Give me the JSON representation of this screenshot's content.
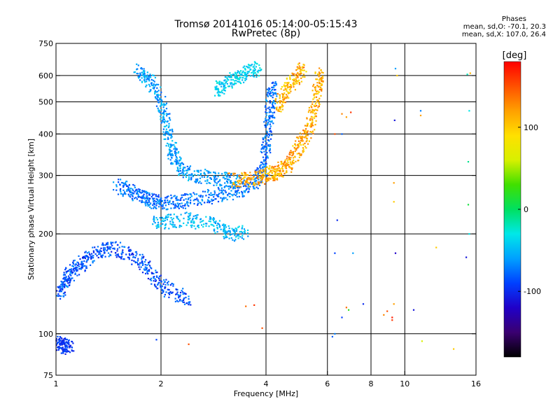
{
  "chart_data": {
    "type": "scatter",
    "title": "Tromsø 20141016 05:14:00-05:15:43",
    "subtitle": "RwPretec (8p)",
    "xlabel": "Frequency [MHz]",
    "ylabel": "Stationary phase Virtual Height [km]",
    "x_scale": "log",
    "y_scale": "log",
    "xlim": [
      1,
      16
    ],
    "ylim": [
      75,
      750
    ],
    "x_ticks": [
      1,
      2,
      4,
      6,
      8,
      10,
      16
    ],
    "x_tick_labels": [
      "1",
      "2",
      "4",
      "6",
      "8",
      "10",
      "16"
    ],
    "y_ticks": [
      75,
      100,
      200,
      300,
      400,
      500,
      600,
      750
    ],
    "y_tick_labels": [
      "75",
      "100",
      "200",
      "300",
      "400",
      "500",
      "600",
      "750"
    ],
    "grid": true,
    "legend": {
      "heading": "Phases",
      "line_o": "mean, sd,O: -70.1, 20.3",
      "line_x": "mean, sd,X: 107.0, 26.4"
    },
    "colorbar": {
      "label": "[deg]",
      "range": [
        -180,
        180
      ],
      "ticks": [
        100,
        0,
        -100
      ],
      "tick_labels": [
        "100",
        "0",
        "-100"
      ],
      "colormap": [
        "#000000",
        "#3a0070",
        "#2000c8",
        "#0040ff",
        "#00a0ff",
        "#00e8e8",
        "#00e060",
        "#40e000",
        "#d8f000",
        "#ffe000",
        "#ffa000",
        "#ff5000",
        "#ff0000"
      ]
    },
    "traces": [
      {
        "name": "",
        "mean_phase": -85,
        "spread": 22,
        "points": [
          [
            1.02,
            130
          ],
          [
            1.05,
            140
          ],
          [
            1.08,
            148
          ],
          [
            1.12,
            155
          ],
          [
            1.18,
            162
          ],
          [
            1.25,
            170
          ],
          [
            1.35,
            178
          ],
          [
            1.45,
            182
          ],
          [
            1.6,
            175
          ],
          [
            1.75,
            165
          ],
          [
            1.9,
            150
          ],
          [
            2.0,
            140
          ],
          [
            2.2,
            132
          ],
          [
            2.4,
            128
          ]
        ]
      },
      {
        "name": "",
        "mean_phase": -75,
        "spread": 20,
        "points": [
          [
            1.5,
            280
          ],
          [
            1.6,
            272
          ],
          [
            1.7,
            262
          ],
          [
            1.8,
            255
          ],
          [
            1.9,
            250
          ],
          [
            2.0,
            248
          ],
          [
            2.2,
            250
          ],
          [
            2.4,
            253
          ],
          [
            2.7,
            258
          ],
          [
            3.0,
            263
          ],
          [
            3.3,
            270
          ],
          [
            3.6,
            280
          ],
          [
            3.8,
            292
          ],
          [
            3.95,
            320
          ],
          [
            4.0,
            360
          ],
          [
            4.05,
            410
          ],
          [
            4.1,
            460
          ],
          [
            4.15,
            520
          ],
          [
            4.2,
            560
          ]
        ]
      },
      {
        "name": "",
        "mean_phase": -60,
        "spread": 20,
        "points": [
          [
            1.7,
            620
          ],
          [
            1.8,
            600
          ],
          [
            1.9,
            560
          ],
          [
            2.0,
            500
          ],
          [
            2.05,
            450
          ],
          [
            2.1,
            400
          ],
          [
            2.15,
            360
          ],
          [
            2.2,
            330
          ],
          [
            2.3,
            310
          ],
          [
            2.5,
            300
          ],
          [
            2.8,
            295
          ],
          [
            3.1,
            292
          ],
          [
            3.4,
            290
          ]
        ]
      },
      {
        "name": "",
        "mean_phase": -40,
        "spread": 18,
        "points": [
          [
            2.9,
            540
          ],
          [
            3.0,
            560
          ],
          [
            3.2,
            580
          ],
          [
            3.4,
            600
          ],
          [
            3.6,
            620
          ],
          [
            3.8,
            640
          ]
        ]
      },
      {
        "name": "",
        "mean_phase": 115,
        "spread": 25,
        "points": [
          [
            3.2,
            290
          ],
          [
            3.5,
            292
          ],
          [
            3.8,
            296
          ],
          [
            4.0,
            300
          ],
          [
            4.2,
            305
          ],
          [
            4.4,
            312
          ],
          [
            4.6,
            322
          ],
          [
            4.8,
            340
          ],
          [
            5.0,
            370
          ],
          [
            5.2,
            400
          ],
          [
            5.4,
            440
          ],
          [
            5.55,
            490
          ],
          [
            5.65,
            560
          ],
          [
            5.7,
            620
          ]
        ]
      },
      {
        "name": "",
        "mean_phase": 110,
        "spread": 30,
        "points": [
          [
            4.3,
            480
          ],
          [
            4.5,
            520
          ],
          [
            4.7,
            560
          ],
          [
            4.9,
            600
          ],
          [
            5.1,
            630
          ]
        ]
      },
      {
        "name": "",
        "mean_phase": -50,
        "spread": 18,
        "points": [
          [
            1.9,
            215
          ],
          [
            2.1,
            218
          ],
          [
            2.4,
            222
          ],
          [
            2.7,
            215
          ],
          [
            3.0,
            208
          ],
          [
            3.2,
            200
          ],
          [
            3.5,
            205
          ]
        ]
      },
      {
        "name": "",
        "mean_phase": -95,
        "spread": 15,
        "points": [
          [
            1.0,
            95
          ],
          [
            1.03,
            93
          ],
          [
            1.06,
            92
          ],
          [
            1.1,
            90
          ]
        ]
      }
    ],
    "scattered": [
      [
        1.94,
        96,
        -90
      ],
      [
        2.4,
        93,
        150
      ],
      [
        3.7,
        122,
        160
      ],
      [
        3.5,
        121,
        140
      ],
      [
        3.9,
        104,
        150
      ],
      [
        6.2,
        98,
        -80
      ],
      [
        6.3,
        175,
        -90
      ],
      [
        6.8,
        120,
        140
      ],
      [
        6.9,
        118,
        20
      ],
      [
        7.1,
        175,
        -60
      ],
      [
        7.6,
        123,
        -100
      ],
      [
        6.6,
        112,
        -90
      ],
      [
        6.3,
        100,
        -70
      ],
      [
        8.7,
        114,
        130
      ],
      [
        8.9,
        117,
        150
      ],
      [
        9.2,
        110,
        160
      ],
      [
        9.2,
        112,
        170
      ],
      [
        9.3,
        123,
        120
      ],
      [
        9.4,
        175,
        -120
      ],
      [
        9.3,
        285,
        120
      ],
      [
        9.3,
        250,
        100
      ],
      [
        9.35,
        440,
        -110
      ],
      [
        9.4,
        630,
        -60
      ],
      [
        9.5,
        600,
        100
      ],
      [
        10.6,
        118,
        -110
      ],
      [
        11.1,
        470,
        -70
      ],
      [
        11.1,
        455,
        120
      ],
      [
        12.3,
        182,
        100
      ],
      [
        13.8,
        90,
        100
      ],
      [
        11.2,
        95,
        60
      ],
      [
        15.0,
        170,
        -110
      ],
      [
        15.1,
        605,
        -20
      ],
      [
        15.3,
        470,
        -30
      ],
      [
        15.2,
        330,
        -10
      ],
      [
        15.2,
        245,
        10
      ],
      [
        15.3,
        200,
        -30
      ],
      [
        15.4,
        610,
        110
      ],
      [
        6.4,
        220,
        -100
      ],
      [
        6.6,
        460,
        130
      ],
      [
        6.8,
        450,
        120
      ],
      [
        6.3,
        400,
        150
      ],
      [
        6.6,
        400,
        -80
      ],
      [
        7.0,
        465,
        160
      ]
    ]
  }
}
